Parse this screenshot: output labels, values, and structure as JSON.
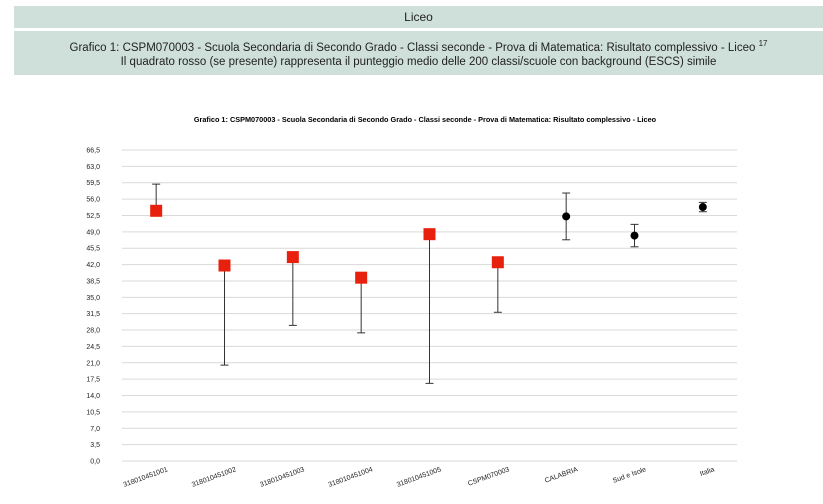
{
  "header": {
    "title": "Liceo"
  },
  "caption": {
    "line1": "Grafico 1: CSPM070003 - Scuola Secondaria di Secondo Grado - Classi seconde - Prova di Matematica: Risultato complessivo - Liceo",
    "footnote": "17",
    "line2": "Il quadrato rosso (se presente) rappresenta il punteggio medio delle 200 classi/scuole con background (ESCS) simile"
  },
  "colors": {
    "red_square": "#e8200e",
    "black_dot": "#000000",
    "grid": "#d9d9d9",
    "header_bg": "#cfe0db"
  },
  "chart_data": {
    "type": "scatter",
    "title": "Grafico 1: CSPM070003 - Scuola Secondaria di Secondo Grado - Classi seconde - Prova di Matematica: Risultato complessivo - Liceo",
    "xlabel": "",
    "ylabel": "",
    "ylim": [
      0,
      66.5
    ],
    "yticks": [
      "0,0",
      "3,5",
      "7,0",
      "10,5",
      "14,0",
      "17,5",
      "21,0",
      "24,5",
      "28,0",
      "31,5",
      "35,0",
      "38,5",
      "42,0",
      "45,5",
      "49,0",
      "52,5",
      "56,0",
      "59,5",
      "63,0",
      "66,5"
    ],
    "grid": true,
    "categories": [
      "318010451001",
      "318010451002",
      "318010451003",
      "318010451004",
      "318010451005",
      "CSPM070003",
      "CALABRIA",
      "Sud e Isole",
      "Italia"
    ],
    "points": [
      {
        "category": "318010451001",
        "marker": "square",
        "value": 53.5,
        "low": 53.5,
        "high": 59.2
      },
      {
        "category": "318010451002",
        "marker": "square",
        "value": 41.8,
        "low": 20.5,
        "high": 41.8
      },
      {
        "category": "318010451003",
        "marker": "square",
        "value": 43.6,
        "low": 29.0,
        "high": 43.6
      },
      {
        "category": "318010451004",
        "marker": "square",
        "value": 39.2,
        "low": 27.4,
        "high": 39.2
      },
      {
        "category": "318010451005",
        "marker": "square",
        "value": 48.5,
        "low": 16.6,
        "high": 48.5
      },
      {
        "category": "CSPM070003",
        "marker": "square",
        "value": 42.5,
        "low": 31.8,
        "high": 42.5
      },
      {
        "category": "CALABRIA",
        "marker": "circle",
        "value": 52.3,
        "low": 47.3,
        "high": 57.3
      },
      {
        "category": "Sud e Isole",
        "marker": "circle",
        "value": 48.2,
        "low": 45.8,
        "high": 50.6
      },
      {
        "category": "Italia",
        "marker": "circle",
        "value": 54.3,
        "low": 53.3,
        "high": 55.3
      }
    ]
  }
}
